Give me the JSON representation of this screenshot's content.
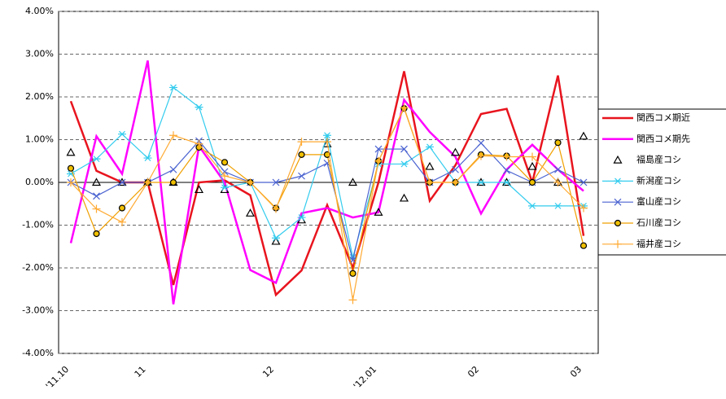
{
  "chart_data": {
    "type": "line",
    "categories": [
      "'11.10",
      null,
      null,
      "11",
      null,
      null,
      null,
      null,
      "12",
      null,
      null,
      null,
      "'12.01",
      null,
      null,
      null,
      "02",
      null,
      null,
      null,
      "03"
    ],
    "ylim": [
      -4,
      4
    ],
    "yticks": [
      {
        "value": -4,
        "label": "-4.00%"
      },
      {
        "value": -3,
        "label": "-3.00%"
      },
      {
        "value": -2,
        "label": "-2.00%"
      },
      {
        "value": -1,
        "label": "-1.00%"
      },
      {
        "value": 0,
        "label": "0.00%"
      },
      {
        "value": 1,
        "label": "1.00%"
      },
      {
        "value": 2,
        "label": "2.00%"
      },
      {
        "value": 3,
        "label": "3.00%"
      },
      {
        "value": 4,
        "label": "4.00%"
      }
    ],
    "grid": true,
    "legend": "right",
    "series": [
      {
        "name": "関西コメ期近",
        "color": "#e8141e",
        "marker": "none",
        "line": true,
        "values": [
          1.9,
          0.27,
          0,
          0,
          -2.4,
          0,
          0.05,
          -0.3,
          -2.63,
          -2.06,
          -0.53,
          -2.0,
          0,
          2.6,
          -0.43,
          0.4,
          1.6,
          1.72,
          0,
          2.5,
          -1.25
        ]
      },
      {
        "name": "関西コメ期先",
        "color": "#ff00ff",
        "marker": "none",
        "line": true,
        "values": [
          -1.42,
          1.08,
          0.2,
          2.85,
          -2.85,
          0.85,
          0,
          -2.05,
          -2.35,
          -0.72,
          -0.6,
          -0.82,
          -0.7,
          1.93,
          1.18,
          0.6,
          -0.73,
          0.3,
          0.88,
          0.3,
          -0.2
        ]
      },
      {
        "name": "福島産コシ",
        "color": "#000000",
        "marker": "triangle",
        "line": false,
        "values": [
          0.7,
          0,
          0,
          0,
          0,
          -0.17,
          -0.17,
          -0.72,
          -1.38,
          -0.88,
          0.9,
          0,
          -0.7,
          -0.37,
          0.37,
          0.7,
          0,
          0,
          0.37,
          0,
          1.08
        ]
      },
      {
        "name": "新潟産コシ",
        "color": "#33ccee",
        "marker": "asterisk",
        "line": true,
        "values": [
          0.2,
          0.55,
          1.13,
          0.57,
          2.22,
          1.76,
          -0.12,
          0,
          -1.3,
          -0.82,
          1.1,
          -1.75,
          0.43,
          0.43,
          0.83,
          0,
          0,
          0,
          -0.55,
          -0.55,
          -0.55
        ]
      },
      {
        "name": "富山産コシ",
        "color": "#4a62d0",
        "marker": "x",
        "line": true,
        "values": [
          0,
          -0.32,
          0,
          0,
          0.3,
          0.97,
          0.25,
          0,
          0,
          0.15,
          0.45,
          -1.82,
          0.78,
          0.78,
          0,
          0.3,
          0.92,
          0.28,
          0,
          0.3,
          0
        ]
      },
      {
        "name": "石川産コシ",
        "color": "#f0a000",
        "marker": "circle",
        "line": true,
        "values": [
          0.33,
          -1.2,
          -0.6,
          0,
          0,
          0.82,
          0.47,
          0,
          -0.6,
          0.65,
          0.65,
          -2.13,
          0.5,
          1.73,
          0,
          0,
          0.65,
          0.62,
          0,
          0.93,
          -1.48
        ]
      },
      {
        "name": "福井産コシ",
        "color": "#ffaa33",
        "marker": "plus",
        "line": true,
        "values": [
          0,
          -0.62,
          -0.93,
          0,
          1.1,
          0.9,
          0.15,
          0,
          -0.62,
          0.95,
          0.95,
          -2.75,
          0.5,
          1.75,
          0,
          0,
          0.62,
          0.6,
          0.6,
          0,
          -0.6
        ]
      }
    ]
  }
}
